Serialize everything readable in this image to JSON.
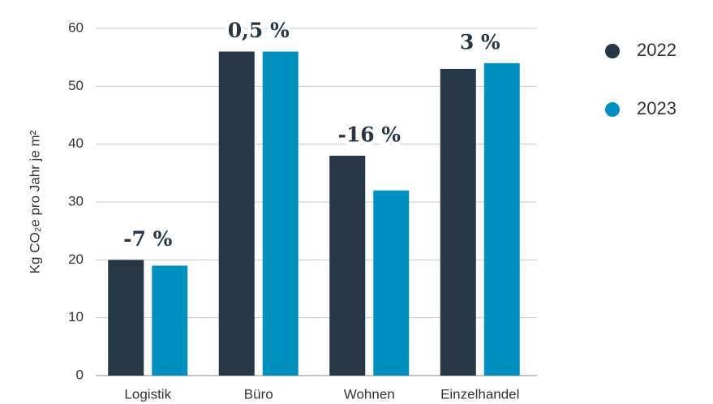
{
  "chart_data": {
    "type": "bar",
    "y_label": "Kg CO₂e pro Jahr je m²",
    "categories": [
      "Logistik",
      "Büro",
      "Wohnen",
      "Einzelhandel"
    ],
    "series": [
      {
        "name": "2022",
        "color": "#263746",
        "values": [
          20,
          56,
          38,
          53
        ]
      },
      {
        "name": "2023",
        "color": "#0090c0",
        "values": [
          19,
          56,
          32,
          54
        ]
      }
    ],
    "annotations": [
      "-7 %",
      "0,5 %",
      "-16 %",
      "3 %"
    ],
    "ylim": [
      0,
      60
    ],
    "yticks": [
      0,
      10,
      20,
      30,
      40,
      50,
      60
    ],
    "grid": true,
    "legend": "right"
  }
}
